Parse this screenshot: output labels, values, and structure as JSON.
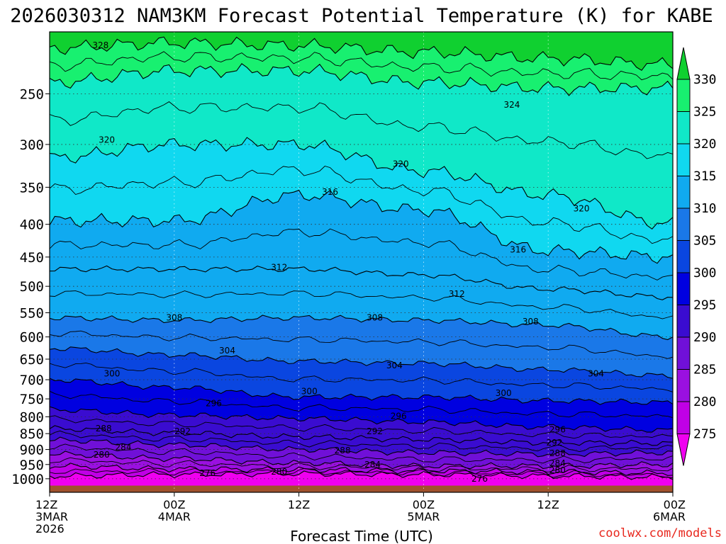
{
  "chart_data": {
    "type": "contour",
    "title": "2026030312 NAM3KM Forecast Potential Temperature (K) for KABE",
    "xlabel": "Forecast Time (UTC)",
    "ylabel": "",
    "credit": "coolwx.com/models",
    "y_scale": "log-pressure",
    "ylim": [
      1050,
      200
    ],
    "y_ticks": [
      250,
      300,
      350,
      400,
      450,
      500,
      550,
      600,
      650,
      700,
      750,
      800,
      850,
      900,
      950,
      1000
    ],
    "x_range_hours": [
      0,
      60
    ],
    "x_ticks": [
      {
        "hour": 0,
        "line1": "12Z",
        "line2": "3MAR",
        "line3": "2026"
      },
      {
        "hour": 12,
        "line1": "00Z",
        "line2": "4MAR",
        "line3": ""
      },
      {
        "hour": 24,
        "line1": "12Z",
        "line2": "",
        "line3": ""
      },
      {
        "hour": 36,
        "line1": "00Z",
        "line2": "5MAR",
        "line3": ""
      },
      {
        "hour": 48,
        "line1": "12Z",
        "line2": "",
        "line3": ""
      },
      {
        "hour": 60,
        "line1": "00Z",
        "line2": "6MAR",
        "line3": ""
      }
    ],
    "colorbar": {
      "levels": [
        275,
        280,
        285,
        290,
        295,
        300,
        305,
        310,
        315,
        320,
        325,
        330
      ],
      "colors": [
        "#f000f0",
        "#c000e6",
        "#9a10e0",
        "#7010d8",
        "#3a0cd0",
        "#0000e0",
        "#0a46e0",
        "#1a78e8",
        "#10aaf0",
        "#10d8f0",
        "#10e8c8",
        "#18f070",
        "#10d030"
      ]
    },
    "isentropes": [
      {
        "theta": 276,
        "p": [
          990,
          985,
          982,
          985,
          990,
          994
        ]
      },
      {
        "theta": 280,
        "p": [
          955,
          965,
          968,
          972,
          975,
          980
        ]
      },
      {
        "theta": 284,
        "p": [
          915,
          930,
          945,
          955,
          955,
          950
        ]
      },
      {
        "theta": 288,
        "p": [
          870,
          885,
          900,
          910,
          915,
          910
        ]
      },
      {
        "theta": 292,
        "p": [
          835,
          848,
          860,
          868,
          878,
          880
        ]
      },
      {
        "theta": 296,
        "p": [
          780,
          795,
          805,
          815,
          830,
          840
        ]
      },
      {
        "theta": 300,
        "p": [
          700,
          720,
          745,
          745,
          755,
          760
        ]
      },
      {
        "theta": 304,
        "p": [
          625,
          640,
          655,
          660,
          675,
          690
        ]
      },
      {
        "theta": 308,
        "p": [
          560,
          565,
          560,
          565,
          575,
          600
        ]
      },
      {
        "theta": 312,
        "p": [
          470,
          470,
          470,
          480,
          505,
          520
        ]
      },
      {
        "theta": 316,
        "p": [
          395,
          395,
          360,
          380,
          440,
          450
        ]
      },
      {
        "theta": 320,
        "p": [
          315,
          300,
          300,
          330,
          360,
          400
        ]
      },
      {
        "theta": 324,
        "p": [
          240,
          230,
          230,
          240,
          245,
          245
        ]
      },
      {
        "theta": 328,
        "p": [
          212,
          208,
          210,
          215,
          220,
          225
        ]
      }
    ],
    "contour_labels": [
      {
        "text": "328",
        "hour": 4.9,
        "p": 210
      },
      {
        "text": "324",
        "hour": 44.5,
        "p": 260
      },
      {
        "text": "320",
        "hour": 5.5,
        "p": 295
      },
      {
        "text": "320",
        "hour": 33.8,
        "p": 322
      },
      {
        "text": "320",
        "hour": 51.2,
        "p": 378
      },
      {
        "text": "316",
        "hour": 27.0,
        "p": 356
      },
      {
        "text": "316",
        "hour": 45.1,
        "p": 438
      },
      {
        "text": "312",
        "hour": 22.1,
        "p": 467
      },
      {
        "text": "312",
        "hour": 39.2,
        "p": 514
      },
      {
        "text": "308",
        "hour": 12.0,
        "p": 560
      },
      {
        "text": "308",
        "hour": 31.3,
        "p": 560
      },
      {
        "text": "308",
        "hour": 46.3,
        "p": 568
      },
      {
        "text": "304",
        "hour": 17.1,
        "p": 630
      },
      {
        "text": "304",
        "hour": 33.2,
        "p": 665
      },
      {
        "text": "304",
        "hour": 52.6,
        "p": 685
      },
      {
        "text": "300",
        "hour": 6.0,
        "p": 685
      },
      {
        "text": "300",
        "hour": 25.0,
        "p": 730
      },
      {
        "text": "300",
        "hour": 43.7,
        "p": 735
      },
      {
        "text": "296",
        "hour": 15.8,
        "p": 762
      },
      {
        "text": "296",
        "hour": 33.6,
        "p": 798
      },
      {
        "text": "296",
        "hour": 48.9,
        "p": 838
      },
      {
        "text": "292",
        "hour": 12.8,
        "p": 843
      },
      {
        "text": "292",
        "hour": 31.3,
        "p": 843
      },
      {
        "text": "292",
        "hour": 48.6,
        "p": 878
      },
      {
        "text": "288",
        "hour": 5.2,
        "p": 835
      },
      {
        "text": "288",
        "hour": 28.2,
        "p": 903
      },
      {
        "text": "288",
        "hour": 48.9,
        "p": 912
      },
      {
        "text": "284",
        "hour": 7.1,
        "p": 893
      },
      {
        "text": "284",
        "hour": 31.1,
        "p": 950
      },
      {
        "text": "284",
        "hour": 48.9,
        "p": 946
      },
      {
        "text": "280",
        "hour": 5.0,
        "p": 917
      },
      {
        "text": "280",
        "hour": 22.1,
        "p": 975
      },
      {
        "text": "280",
        "hour": 48.9,
        "p": 970
      },
      {
        "text": "276",
        "hour": 15.2,
        "p": 980
      },
      {
        "text": "276",
        "hour": 41.4,
        "p": 1000
      }
    ]
  }
}
